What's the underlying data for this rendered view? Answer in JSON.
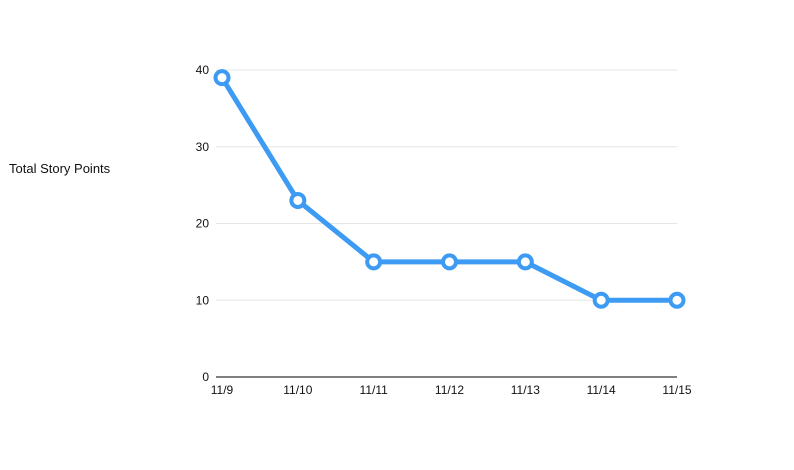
{
  "chart_data": {
    "type": "line",
    "title": "",
    "xlabel": "",
    "ylabel": "Total Story Points",
    "categories": [
      "11/9",
      "11/10",
      "11/11",
      "11/12",
      "11/13",
      "11/14",
      "11/15"
    ],
    "series": [
      {
        "values": [
          39,
          23,
          15,
          15,
          15,
          10,
          10
        ],
        "color": "#3d9bf3"
      }
    ],
    "ylim": [
      0,
      40
    ],
    "yticks": [
      0,
      10,
      20,
      30,
      40
    ],
    "grid": true,
    "legend": "none"
  }
}
